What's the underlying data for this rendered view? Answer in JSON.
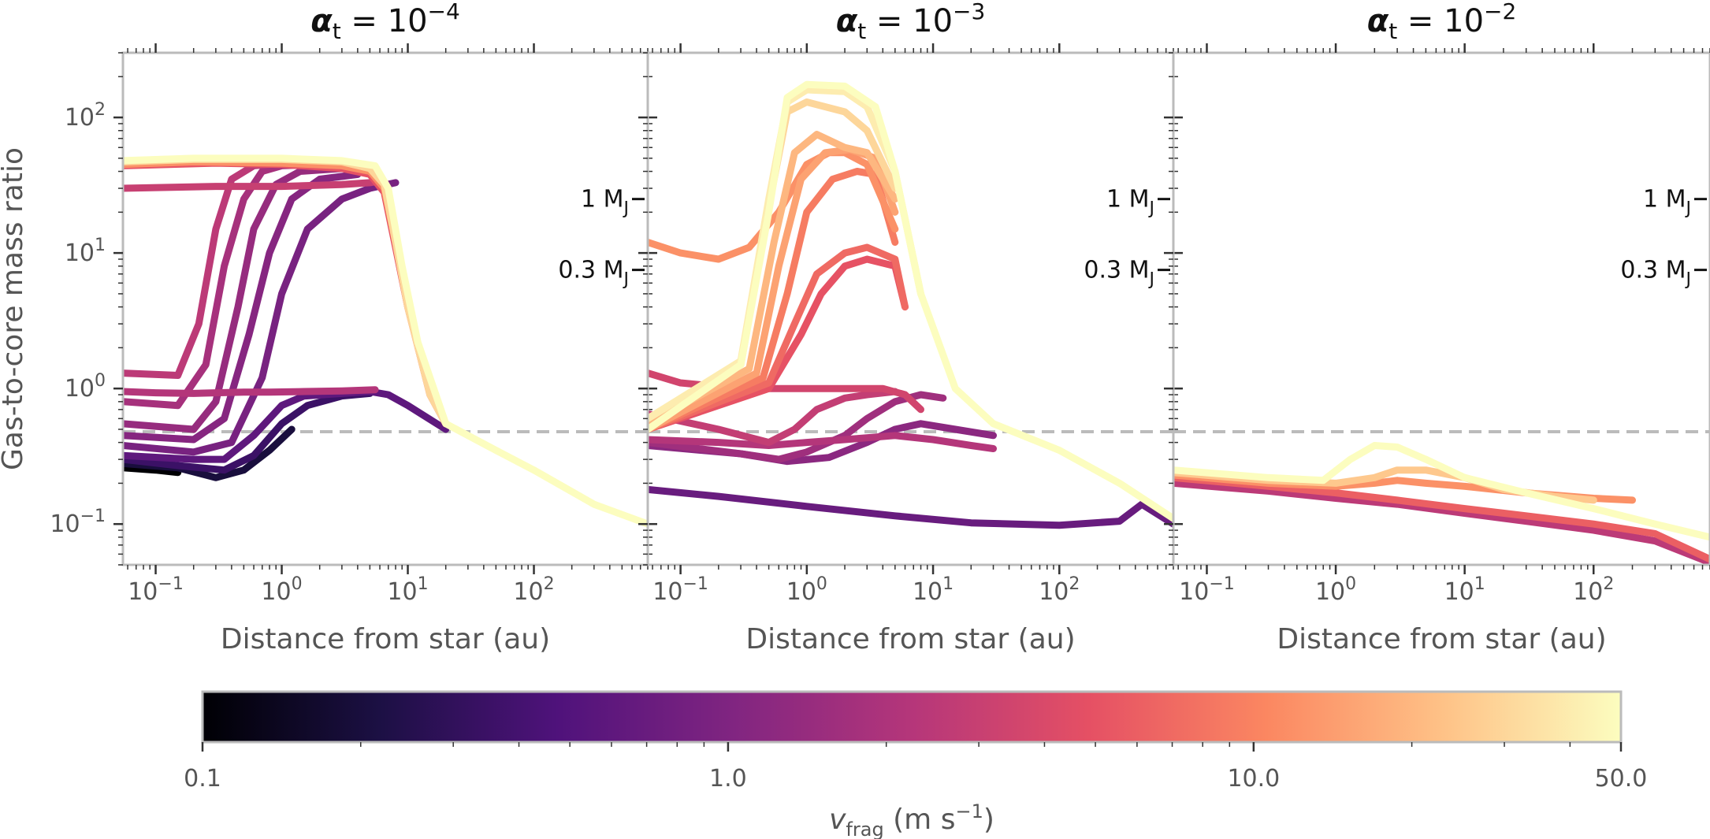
{
  "chart_data": {
    "type": "line",
    "x_scale": "log",
    "y_scale": "log",
    "xlim": [
      0.055,
      800
    ],
    "ylim": [
      0.05,
      300
    ],
    "ylabel": "Gas-to-core mass ratio",
    "xlabel": "Distance from star (au)",
    "y_ticks": [
      {
        "value": 0.1,
        "base": "10",
        "exp": "−1"
      },
      {
        "value": 1,
        "base": "10",
        "exp": "0"
      },
      {
        "value": 10,
        "base": "10",
        "exp": "1"
      },
      {
        "value": 100,
        "base": "10",
        "exp": "2"
      }
    ],
    "x_ticks": [
      {
        "value": 0.1,
        "base": "10",
        "exp": "−1"
      },
      {
        "value": 1,
        "base": "10",
        "exp": "0"
      },
      {
        "value": 10,
        "base": "10",
        "exp": "1"
      },
      {
        "value": 100,
        "base": "10",
        "exp": "2"
      }
    ],
    "reference_line": {
      "y": 0.48,
      "style": "dashed",
      "color": "#bbbbbb"
    },
    "annotations": [
      {
        "label": "1 M",
        "sub": "J",
        "y": 25
      },
      {
        "label": "0.3 M",
        "sub": "J",
        "y": 7.5
      }
    ],
    "colorbar": {
      "label": "v",
      "label_sub": "frag",
      "label_units": " (m s",
      "label_sup": "−1",
      "label_close": ")",
      "scale": "log",
      "range": [
        0.1,
        50
      ],
      "tick_labels": [
        "0.1",
        "1.0",
        "10.0",
        "50.0"
      ],
      "tick_values": [
        0.1,
        1,
        10,
        50
      ],
      "colormap": "magma",
      "stops": [
        "#000004",
        "#1c1044",
        "#4f127b",
        "#812581",
        "#b5367a",
        "#e55064",
        "#fb8761",
        "#fec287",
        "#fcfdbf"
      ]
    },
    "panels": [
      {
        "title_prefix": "α",
        "title_sub": "t",
        "title_eq": " = 10",
        "title_exp": "−4",
        "series": [
          {
            "vfrag": 50,
            "x": [
              0.055,
              0.2,
              1,
              3,
              5.5,
              7,
              9,
              12,
              20,
              50,
              100,
              300,
              800
            ],
            "y": [
              48,
              50,
              50,
              48,
              44,
              30,
              8,
              2.2,
              0.55,
              0.35,
              0.25,
              0.14,
              0.1
            ]
          },
          {
            "vfrag": 30,
            "x": [
              0.055,
              0.2,
              1,
              3,
              5,
              6.5,
              8,
              10,
              15,
              20
            ],
            "y": [
              47,
              49,
              49,
              47,
              42,
              32,
              12,
              4,
              0.9,
              0.55
            ]
          },
          {
            "vfrag": 12,
            "x": [
              0.055,
              0.2,
              1,
              3,
              5,
              6.5,
              8,
              10,
              15,
              20
            ],
            "y": [
              45,
              47,
              46,
              44,
              40,
              30,
              12,
              4,
              0.9,
              0.55
            ]
          },
          {
            "vfrag": 5,
            "x": [
              0.055,
              0.3,
              1,
              3,
              5,
              6.5,
              8,
              10,
              15,
              20
            ],
            "y": [
              44,
              46,
              45,
              42,
              38,
              28,
              11,
              4,
              0.9,
              0.55
            ]
          },
          {
            "vfrag": 3,
            "x": [
              0.055,
              0.3,
              1,
              3,
              5,
              6,
              7,
              8
            ],
            "y": [
              30,
              31,
              31,
              32,
              33,
              34,
              28,
              12
            ]
          },
          {
            "vfrag": 2.5,
            "x": [
              0.055,
              0.15,
              0.22,
              0.3,
              0.4,
              0.6,
              1,
              2,
              5
            ],
            "y": [
              1.3,
              1.25,
              3,
              15,
              35,
              44,
              46,
              45,
              42
            ]
          },
          {
            "vfrag": 2.2,
            "x": [
              0.055,
              0.1,
              0.2,
              0.3,
              0.5,
              0.8,
              1.5,
              3,
              5.5
            ],
            "y": [
              0.95,
              0.93,
              0.92,
              0.93,
              0.94,
              0.94,
              0.95,
              0.96,
              0.98
            ]
          },
          {
            "vfrag": 1.8,
            "x": [
              0.055,
              0.15,
              0.25,
              0.35,
              0.5,
              0.7,
              1,
              2,
              5
            ],
            "y": [
              0.8,
              0.75,
              1.5,
              8,
              25,
              40,
              44,
              45,
              42
            ]
          },
          {
            "vfrag": 1.4,
            "x": [
              0.055,
              0.2,
              0.3,
              0.45,
              0.6,
              0.9,
              1.4,
              3
            ],
            "y": [
              0.55,
              0.5,
              0.8,
              4,
              15,
              32,
              40,
              42
            ]
          },
          {
            "vfrag": 1.1,
            "x": [
              0.055,
              0.2,
              0.35,
              0.55,
              0.8,
              1.2,
              2,
              4
            ],
            "y": [
              0.45,
              0.42,
              0.6,
              2.5,
              10,
              25,
              35,
              38
            ]
          },
          {
            "vfrag": 0.9,
            "x": [
              0.055,
              0.2,
              0.4,
              0.7,
              1,
              1.6,
              3,
              5,
              8
            ],
            "y": [
              0.38,
              0.34,
              0.4,
              1.2,
              5,
              15,
              25,
              30,
              33
            ]
          },
          {
            "vfrag": 0.6,
            "x": [
              0.055,
              0.2,
              0.35,
              0.6,
              1,
              1.5,
              3,
              5,
              7,
              10,
              20
            ],
            "y": [
              0.32,
              0.3,
              0.3,
              0.45,
              0.75,
              0.88,
              0.92,
              0.95,
              0.9,
              0.75,
              0.5
            ]
          },
          {
            "vfrag": 0.35,
            "x": [
              0.055,
              0.15,
              0.35,
              0.6,
              1,
              1.6,
              3,
              5
            ],
            "y": [
              0.3,
              0.27,
              0.25,
              0.32,
              0.55,
              0.75,
              0.88,
              0.92
            ]
          },
          {
            "vfrag": 0.2,
            "x": [
              0.055,
              0.15,
              0.3,
              0.5,
              0.8,
              1.2
            ],
            "y": [
              0.28,
              0.26,
              0.22,
              0.25,
              0.35,
              0.5
            ]
          },
          {
            "vfrag": 0.1,
            "x": [
              0.055,
              0.1,
              0.15
            ],
            "y": [
              0.26,
              0.25,
              0.24
            ]
          }
        ]
      },
      {
        "title_prefix": "α",
        "title_sub": "t",
        "title_eq": " = 10",
        "title_exp": "−3",
        "series": [
          {
            "vfrag": 50,
            "x": [
              0.055,
              0.3,
              0.5,
              0.7,
              1,
              2,
              3.5,
              5,
              8,
              15,
              30,
              100,
              300,
              800
            ],
            "y": [
              0.5,
              1.5,
              20,
              140,
              175,
              170,
              120,
              40,
              5,
              1,
              0.55,
              0.35,
              0.2,
              0.11
            ]
          },
          {
            "vfrag": 40,
            "x": [
              0.055,
              0.3,
              0.5,
              0.7,
              1,
              2,
              3,
              5,
              8
            ],
            "y": [
              0.6,
              1.6,
              25,
              130,
              160,
              155,
              120,
              40,
              5
            ]
          },
          {
            "vfrag": 30,
            "x": [
              0.055,
              0.3,
              0.5,
              0.7,
              1,
              2,
              3,
              5
            ],
            "y": [
              0.6,
              1.5,
              22,
              110,
              130,
              110,
              80,
              30
            ]
          },
          {
            "vfrag": 20,
            "x": [
              0.055,
              0.35,
              0.55,
              0.8,
              1.2,
              2,
              3,
              5
            ],
            "y": [
              0.55,
              1.4,
              12,
              55,
              75,
              60,
              55,
              25
            ]
          },
          {
            "vfrag": 15,
            "x": [
              0.055,
              0.4,
              0.6,
              0.9,
              1.4,
              2.2,
              3.5,
              5
            ],
            "y": [
              0.5,
              1.3,
              8,
              35,
              55,
              58,
              50,
              20
            ]
          },
          {
            "vfrag": 12,
            "x": [
              0.055,
              0.1,
              0.2,
              0.35,
              0.6,
              1,
              1.5,
              2,
              3,
              5
            ],
            "y": [
              12,
              10,
              9,
              11,
              20,
              45,
              55,
              55,
              45,
              15
            ]
          },
          {
            "vfrag": 9,
            "x": [
              0.055,
              0.45,
              0.7,
              1,
              1.6,
              2.5,
              3.5,
              5
            ],
            "y": [
              0.5,
              1.2,
              5,
              20,
              35,
              40,
              38,
              12
            ]
          },
          {
            "vfrag": 7,
            "x": [
              0.055,
              0.5,
              0.8,
              1.2,
              2,
              3,
              5,
              6
            ],
            "y": [
              0.5,
              1.1,
              3,
              7,
              10,
              11,
              9,
              4
            ]
          },
          {
            "vfrag": 5,
            "x": [
              0.055,
              0.5,
              0.9,
              1.3,
              2,
              3,
              5,
              6
            ],
            "y": [
              0.5,
              1.0,
              2.5,
              5,
              8,
              9,
              8,
              4
            ]
          },
          {
            "vfrag": 3.5,
            "x": [
              0.055,
              0.1,
              0.3,
              0.6,
              1,
              2,
              4,
              6,
              8
            ],
            "y": [
              1.3,
              1.1,
              1.0,
              1.0,
              1.0,
              1.0,
              1.0,
              0.9,
              0.7
            ]
          },
          {
            "vfrag": 2.8,
            "x": [
              0.055,
              0.2,
              0.5,
              0.8,
              1.2,
              2,
              3,
              5
            ],
            "y": [
              0.65,
              0.5,
              0.4,
              0.5,
              0.7,
              0.85,
              0.9,
              0.95
            ]
          },
          {
            "vfrag": 2.2,
            "x": [
              0.055,
              0.2,
              0.5,
              1,
              2,
              5,
              10,
              20,
              30
            ],
            "y": [
              0.42,
              0.4,
              0.38,
              0.4,
              0.42,
              0.45,
              0.42,
              0.38,
              0.36
            ]
          },
          {
            "vfrag": 1.6,
            "x": [
              0.055,
              0.3,
              0.6,
              1,
              2,
              3,
              5,
              8,
              12
            ],
            "y": [
              0.4,
              0.33,
              0.3,
              0.34,
              0.45,
              0.6,
              0.8,
              0.9,
              0.85
            ]
          },
          {
            "vfrag": 1.2,
            "x": [
              0.055,
              0.3,
              0.7,
              1.5,
              3,
              5,
              8,
              15,
              30
            ],
            "y": [
              0.38,
              0.33,
              0.29,
              0.31,
              0.4,
              0.5,
              0.55,
              0.5,
              0.45
            ]
          },
          {
            "vfrag": 0.7,
            "x": [
              0.055,
              0.2,
              1,
              5,
              20,
              100,
              300,
              450,
              800
            ],
            "y": [
              0.18,
              0.16,
              0.135,
              0.115,
              0.102,
              0.098,
              0.105,
              0.14,
              0.1
            ]
          }
        ]
      },
      {
        "title_prefix": "α",
        "title_sub": "t",
        "title_eq": " = 10",
        "title_exp": "−2",
        "series": [
          {
            "vfrag": 50,
            "x": [
              0.055,
              0.3,
              0.8,
              1.3,
              2,
              3,
              5,
              10,
              30,
              100,
              300,
              800
            ],
            "y": [
              0.25,
              0.22,
              0.21,
              0.3,
              0.38,
              0.37,
              0.3,
              0.22,
              0.17,
              0.13,
              0.1,
              0.08
            ]
          },
          {
            "vfrag": 25,
            "x": [
              0.055,
              0.3,
              1,
              2,
              3,
              5,
              10,
              20,
              50,
              100
            ],
            "y": [
              0.24,
              0.21,
              0.2,
              0.22,
              0.25,
              0.25,
              0.22,
              0.18,
              0.16,
              0.15
            ]
          },
          {
            "vfrag": 12,
            "x": [
              0.055,
              0.3,
              1,
              2,
              3,
              5,
              10,
              30,
              100,
              200
            ],
            "y": [
              0.23,
              0.2,
              0.19,
              0.2,
              0.21,
              0.2,
              0.19,
              0.17,
              0.155,
              0.15
            ]
          },
          {
            "vfrag": 6,
            "x": [
              0.055,
              0.3,
              1,
              3,
              10,
              30,
              100,
              300,
              800
            ],
            "y": [
              0.22,
              0.19,
              0.17,
              0.15,
              0.13,
              0.115,
              0.1,
              0.085,
              0.055
            ]
          },
          {
            "vfrag": 2.5,
            "x": [
              0.055,
              0.3,
              1,
              3,
              10,
              30,
              100,
              300,
              800
            ],
            "y": [
              0.2,
              0.175,
              0.155,
              0.14,
              0.12,
              0.105,
              0.09,
              0.075,
              0.052
            ]
          }
        ]
      }
    ]
  }
}
